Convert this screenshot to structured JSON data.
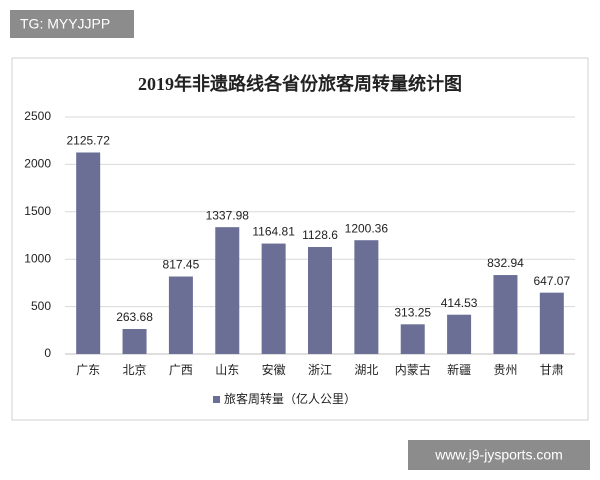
{
  "chart_data": {
    "type": "bar",
    "title": "2019年非遗路线各省份旅客周转量统计图",
    "categories": [
      "广东",
      "北京",
      "广西",
      "山东",
      "安徽",
      "浙江",
      "湖北",
      "内蒙古",
      "新疆",
      "贵州",
      "甘肃"
    ],
    "series": [
      {
        "name": "旅客周转量（亿人公里）",
        "color": "#6b6f96",
        "values": [
          2125.72,
          263.68,
          817.45,
          1337.98,
          1164.81,
          1128.6,
          1200.36,
          313.25,
          414.53,
          832.94,
          647.07
        ]
      }
    ],
    "ylim": [
      0,
      2500
    ],
    "yticks": [
      0,
      500,
      1000,
      1500,
      2000,
      2500
    ],
    "grid": true,
    "legend": "bottom"
  },
  "watermarks": [
    "TG: MYYJJPP",
    "www.j9-jysports.com"
  ]
}
